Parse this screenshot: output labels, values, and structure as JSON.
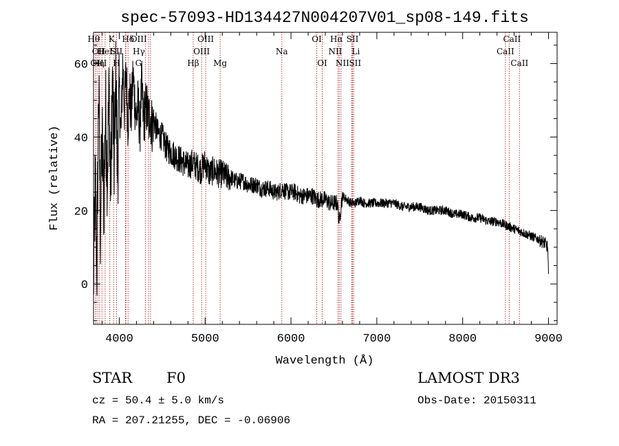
{
  "chart_data": {
    "type": "line",
    "title": "spec-57093-HD134427N004207V01_sp08-149.fits",
    "xlabel": "Wavelength (Å)",
    "ylabel": "Flux (relative)",
    "xlim": [
      3700,
      9100
    ],
    "ylim": [
      -11,
      68.5
    ],
    "x_ticks": [
      "4000",
      "5000",
      "6000",
      "7000",
      "8000",
      "9000"
    ],
    "y_ticks": [
      "0",
      "20",
      "40",
      "60"
    ],
    "x_tick_values": [
      4000,
      5000,
      6000,
      7000,
      8000,
      9000
    ],
    "y_tick_values": [
      0,
      20,
      40,
      60
    ],
    "grid": false,
    "series": [
      {
        "name": "",
        "x": [
          3700,
          3720,
          3740,
          3760,
          3780,
          3800,
          3820,
          3840,
          3860,
          3880,
          3900,
          3920,
          3940,
          3960,
          3980,
          4000,
          4020,
          4040,
          4060,
          4080,
          4100,
          4120,
          4140,
          4160,
          4180,
          4200,
          4220,
          4240,
          4260,
          4280,
          4300,
          4320,
          4340,
          4360,
          4380,
          4400,
          4450,
          4500,
          4550,
          4600,
          4650,
          4700,
          4750,
          4800,
          4850,
          4900,
          4950,
          5000,
          5050,
          5100,
          5150,
          5200,
          5250,
          5300,
          5350,
          5400,
          5450,
          5500,
          5550,
          5600,
          5650,
          5700,
          5750,
          5800,
          5850,
          5900,
          5950,
          6000,
          6050,
          6100,
          6150,
          6200,
          6250,
          6300,
          6350,
          6400,
          6450,
          6500,
          6540,
          6563,
          6580,
          6600,
          6650,
          6700,
          6750,
          6800,
          6850,
          6900,
          6950,
          7000,
          7100,
          7200,
          7300,
          7400,
          7500,
          7600,
          7700,
          7800,
          7900,
          8000,
          8100,
          8200,
          8300,
          8400,
          8500,
          8600,
          8700,
          8800,
          8900,
          8960,
          8990,
          9000
        ],
        "y": [
          -1,
          28,
          5,
          55,
          15,
          40,
          22,
          48,
          30,
          52,
          25,
          55,
          33,
          57,
          30,
          52,
          40,
          60,
          48,
          58,
          44,
          52,
          46,
          57,
          50,
          45,
          49,
          42,
          54,
          45,
          47,
          48,
          44,
          47,
          43,
          45,
          41,
          40,
          37,
          36,
          35,
          34,
          33,
          32,
          33,
          32,
          31,
          33,
          30,
          31,
          30,
          30,
          29,
          29,
          28,
          28,
          28,
          27,
          27,
          27,
          26,
          26,
          26,
          25,
          25,
          26,
          25,
          25,
          25,
          24,
          24,
          24,
          24,
          23,
          23,
          23,
          22,
          22,
          22,
          17,
          21,
          24,
          23,
          22,
          22,
          23,
          22,
          22,
          22,
          22,
          22,
          22,
          21,
          21,
          21,
          20,
          20,
          20,
          19,
          19,
          18,
          18,
          17,
          17,
          16,
          15,
          14,
          13,
          12,
          11,
          10,
          2
        ]
      }
    ],
    "spectral_lines": [
      {
        "label": "Hθ",
        "x": 3798,
        "row": 0,
        "dx": -12
      },
      {
        "label": "OII",
        "x": 3727,
        "row": 1,
        "dx": 4
      },
      {
        "label": "OIII",
        "x": 3727,
        "row": 2,
        "dx": 4
      },
      {
        "label": "Hη",
        "x": 3835,
        "row": 2,
        "dx": -10
      },
      {
        "label": "HeI",
        "x": 3889,
        "row": 1,
        "dx": -7
      },
      {
        "label": "K",
        "x": 3934,
        "row": 0,
        "dx": -3
      },
      {
        "label": "H",
        "x": 3968,
        "row": 2,
        "dx": 0
      },
      {
        "label": "SII",
        "x": 4072,
        "row": 1,
        "dx": -13
      },
      {
        "label": "Hδ",
        "x": 4102,
        "row": 0,
        "dx": 0
      },
      {
        "label": "OIII",
        "x": 4363,
        "row": 0,
        "dx": -17
      },
      {
        "label": "Hγ",
        "x": 4340,
        "row": 1,
        "dx": -14
      },
      {
        "label": "G",
        "x": 4304,
        "row": 2,
        "dx": -10
      },
      {
        "label": "Hβ",
        "x": 4861,
        "row": 2,
        "dx": 0
      },
      {
        "label": "OIII",
        "x": 5007,
        "row": 0,
        "dx": 0
      },
      {
        "label": "OIII",
        "x": 4959,
        "row": 1,
        "dx": 0
      },
      {
        "label": "Mg",
        "x": 5175,
        "row": 2,
        "dx": 0
      },
      {
        "label": "Na",
        "x": 5893,
        "row": 1,
        "dx": 0
      },
      {
        "label": "OI",
        "x": 6300,
        "row": 0,
        "dx": 0
      },
      {
        "label": "OI",
        "x": 6364,
        "row": 2,
        "dx": 0
      },
      {
        "label": "Hα",
        "x": 6563,
        "row": 0,
        "dx": -4
      },
      {
        "label": "SII",
        "x": 6717,
        "row": 0,
        "dx": 0
      },
      {
        "label": "NII",
        "x": 6548,
        "row": 1,
        "dx": -4
      },
      {
        "label": "Li",
        "x": 6708,
        "row": 1,
        "dx": 6
      },
      {
        "label": "NII",
        "x": 6583,
        "row": 2,
        "dx": 2
      },
      {
        "label": "SII",
        "x": 6731,
        "row": 2,
        "dx": 2
      },
      {
        "label": "CaII",
        "x": 8542,
        "row": 0,
        "dx": 4
      },
      {
        "label": "CaII",
        "x": 8498,
        "row": 1,
        "dx": 0
      },
      {
        "label": "CaII",
        "x": 8662,
        "row": 2,
        "dx": 0
      }
    ],
    "extra_line_positions": [
      3750,
      3771,
      4077
    ]
  },
  "info": {
    "object_type": "STAR",
    "subclass": "F0",
    "survey": "LAMOST DR3",
    "cz": "cz = 50.4 ± 5.0 km/s",
    "obs_date": "Obs-Date: 20150311",
    "coords": "RA = 207.21255, DEC =  -0.06906"
  }
}
